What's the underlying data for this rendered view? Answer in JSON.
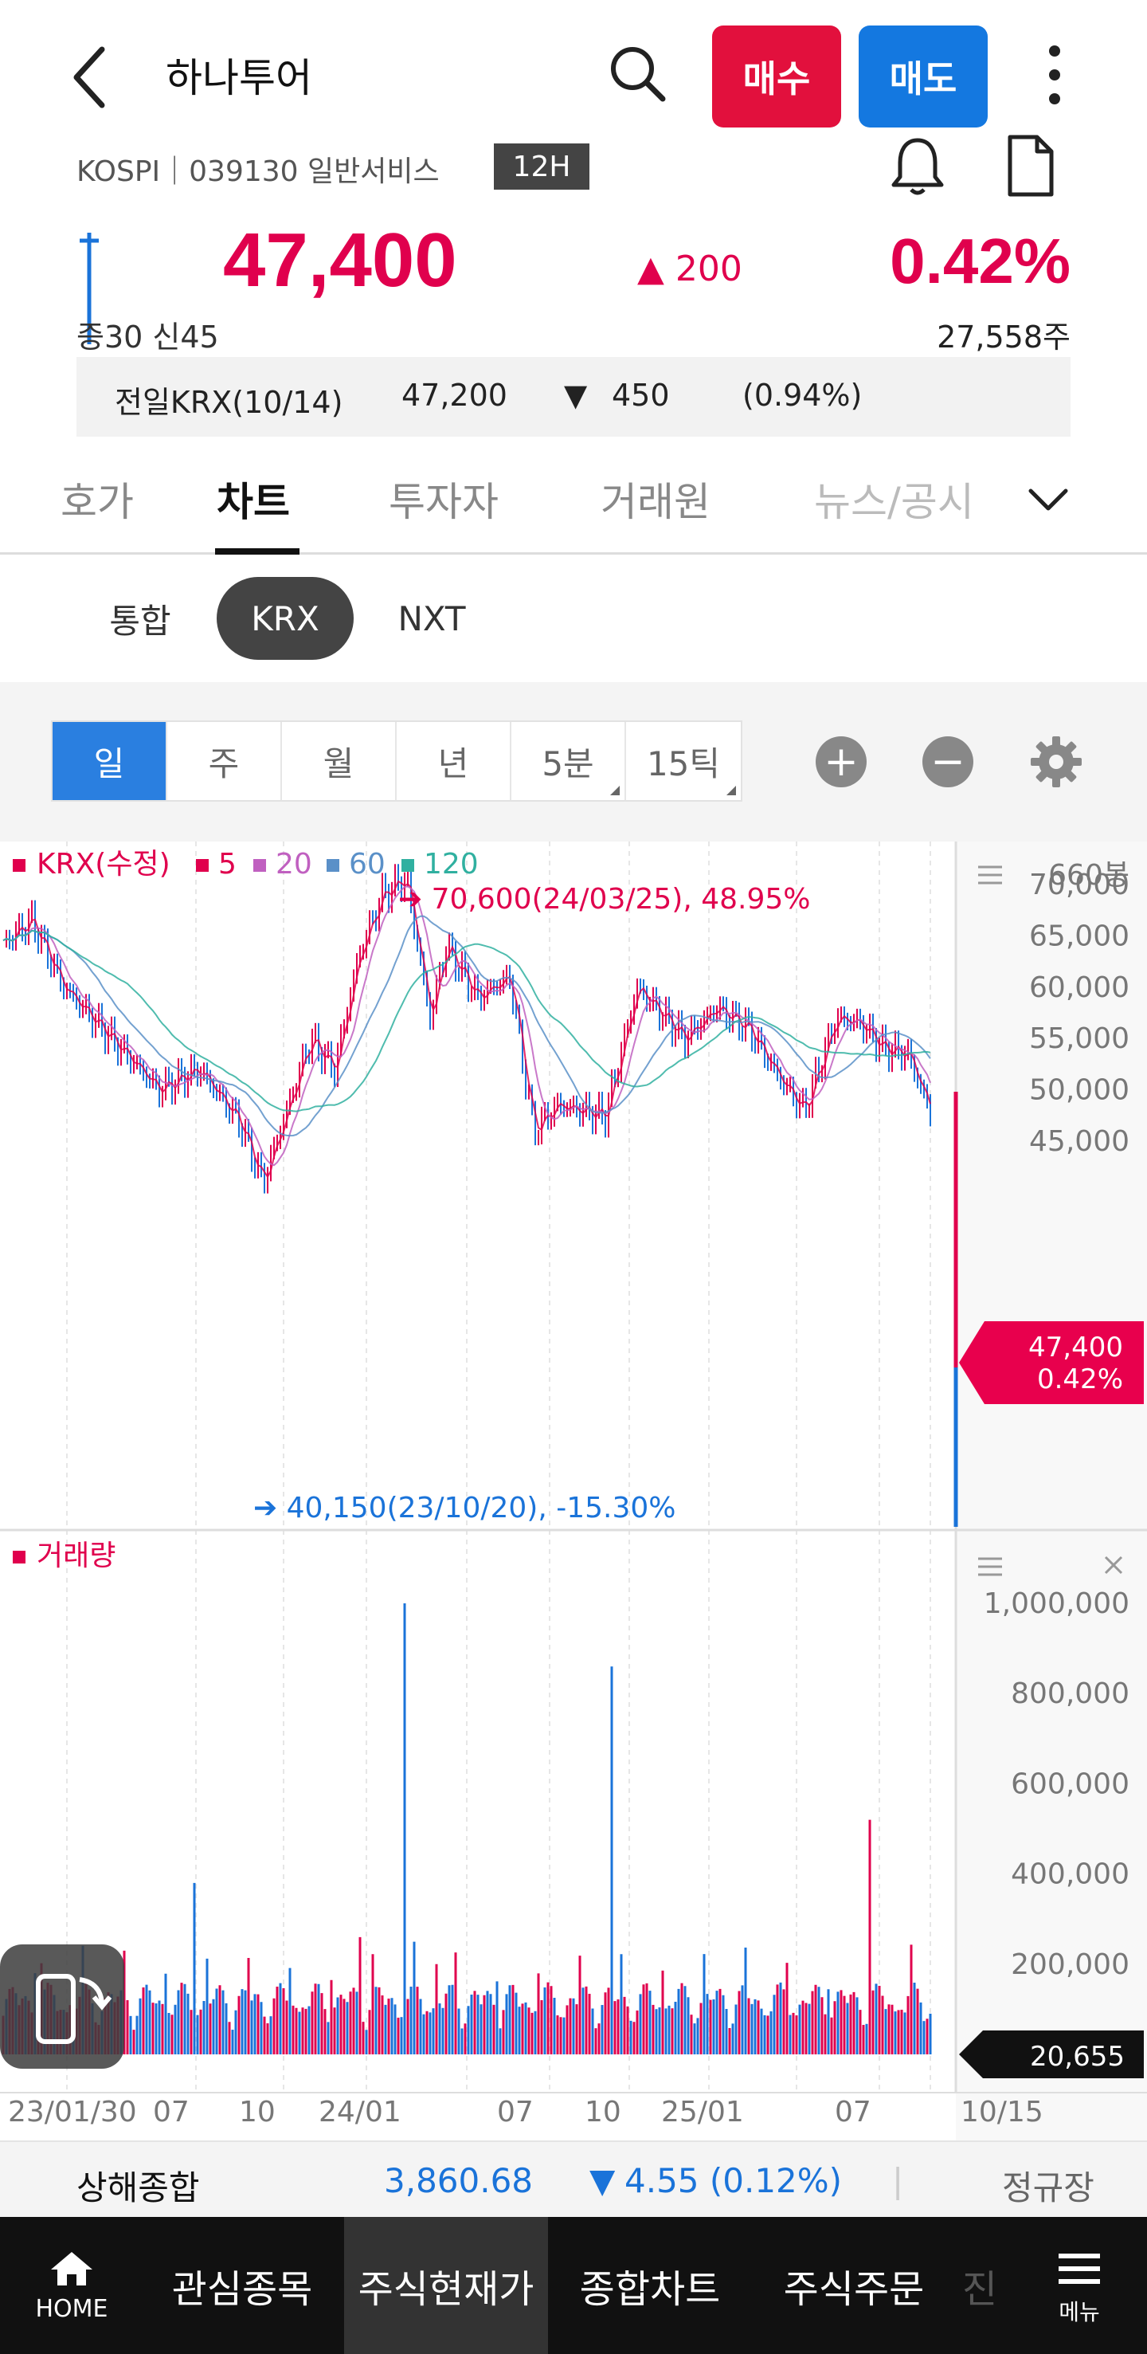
{
  "header": {
    "title": "하나투어",
    "buy_label": "매수",
    "sell_label": "매도",
    "subline": "KOSPI｜039130 일반서비스",
    "tag": "12H"
  },
  "quote": {
    "price": "47,400",
    "change": "200",
    "change_pct": "0.42%",
    "credit": "증30  신45",
    "volume": "27,558주",
    "prev_label": "전일KRX(10/14)",
    "prev_price": "47,200",
    "prev_change": "450",
    "prev_pct": "(0.94%)"
  },
  "tabs": [
    "호가",
    "차트",
    "투자자",
    "거래원",
    "뉴스/공시"
  ],
  "market_tabs": [
    "통합",
    "KRX",
    "NXT"
  ],
  "periods": [
    "일",
    "주",
    "월",
    "년",
    "5분",
    "15틱"
  ],
  "colors": {
    "up": "#e0004d",
    "down": "#1a73d9",
    "ma5": "#e0004d",
    "ma20": "#c060c0",
    "ma60": "#5a90c8",
    "ma120": "#30b0a0"
  },
  "chart": {
    "legend": {
      "main": "KRX(수정)",
      "ma5": "5",
      "ma20": "20",
      "ma60": "60",
      "ma120": "120"
    },
    "count_label": "660봉",
    "y_labels": [
      "70,000",
      "65,000",
      "60,000",
      "55,000",
      "50,000",
      "45,000"
    ],
    "high_annotation": "70,600(24/03/25), 48.95%",
    "low_annotation": "40,150(23/10/20), -15.30%",
    "current_price": "47,400",
    "current_pct": "0.42%",
    "volume_title": "거래량",
    "vol_labels": [
      "1,000,000",
      "800,000",
      "600,000",
      "400,000",
      "200,000"
    ],
    "current_volume": "20,655",
    "x_labels": [
      "23/01/30",
      "07",
      "10",
      "24/01",
      "07",
      "10",
      "25/01",
      "07",
      "10/15"
    ]
  },
  "index_bar": {
    "name": "상해종합",
    "value": "3,860.68",
    "change": "4.55 (0.12%)",
    "status": "정규장"
  },
  "nav": {
    "home": "HOME",
    "items": [
      "관심종목",
      "주식현재가",
      "종합차트",
      "주식주문",
      "진"
    ],
    "menu": "메뉴"
  }
}
